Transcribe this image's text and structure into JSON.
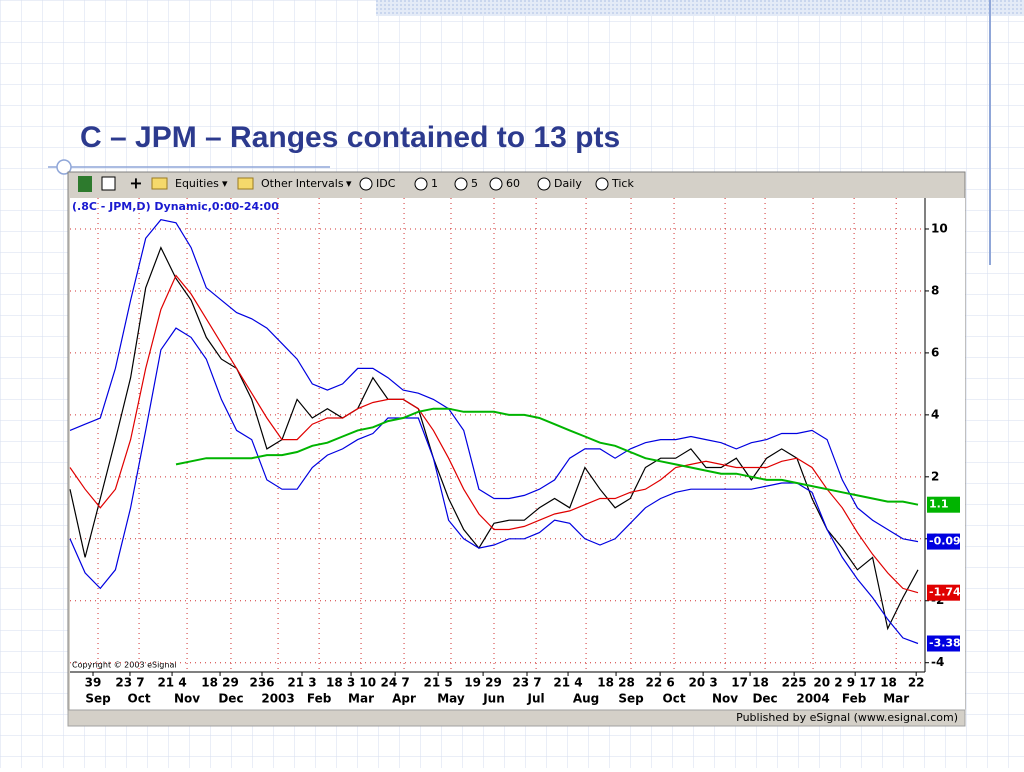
{
  "slide": {
    "title": "C – JPM – Ranges contained to 13 pts"
  },
  "toolbar": {
    "items": [
      "Equities",
      "Other Intervals",
      "IDC",
      "1",
      "5",
      "60",
      "Daily",
      "Tick"
    ]
  },
  "chart_data": {
    "type": "line",
    "title": "(.8C - JPM,D) Dynamic,0:00-24:00",
    "copyright": "Copyright © 2003 eSignal",
    "source": "Published by eSignal (www.esignal.com)",
    "categories": [
      null,
      null,
      null,
      null,
      null,
      null,
      null,
      null,
      null,
      null,
      null,
      null,
      null,
      null,
      null,
      null,
      null,
      null,
      null,
      null,
      null,
      null,
      null,
      null,
      null,
      null,
      null,
      null,
      null,
      null,
      null,
      null,
      null,
      null,
      null,
      null,
      null,
      null,
      null,
      null,
      null,
      null,
      null,
      null,
      null,
      null,
      null,
      null,
      null,
      null,
      null,
      null,
      null,
      null,
      null,
      null,
      null
    ],
    "xlim": [
      0,
      56
    ],
    "xticks": [
      {
        "value": 1.85,
        "label": "Sep"
      },
      {
        "value": 4.56,
        "label": "Oct"
      },
      {
        "value": 7.73,
        "label": "Nov"
      },
      {
        "value": 10.63,
        "label": "Dec"
      },
      {
        "value": 13.74,
        "label": "2003"
      },
      {
        "value": 16.45,
        "label": "Feb"
      },
      {
        "value": 19.22,
        "label": "Mar"
      },
      {
        "value": 22.06,
        "label": "Apr"
      },
      {
        "value": 25.16,
        "label": "May"
      },
      {
        "value": 28.0,
        "label": "Jun"
      },
      {
        "value": 30.78,
        "label": "Jul"
      },
      {
        "value": 34.08,
        "label": "Aug"
      },
      {
        "value": 37.05,
        "label": "Sep"
      },
      {
        "value": 39.89,
        "label": "Oct"
      },
      {
        "value": 43.26,
        "label": "Nov"
      },
      {
        "value": 45.9,
        "label": "Dec"
      },
      {
        "value": 49.07,
        "label": "2004"
      },
      {
        "value": 51.78,
        "label": "Feb"
      },
      {
        "value": 54.56,
        "label": "Mar"
      }
    ],
    "xticks_days": [
      {
        "value": 1.52,
        "label": "39"
      },
      {
        "value": 3.96,
        "label": "23 7"
      },
      {
        "value": 6.74,
        "label": "21 4"
      },
      {
        "value": 9.91,
        "label": "18 29"
      },
      {
        "value": 12.68,
        "label": "236"
      },
      {
        "value": 15.32,
        "label": "21 3"
      },
      {
        "value": 18.56,
        "label": "18 3 10"
      },
      {
        "value": 21.47,
        "label": "24 7"
      },
      {
        "value": 24.31,
        "label": "21 5"
      },
      {
        "value": 27.28,
        "label": "19 29"
      },
      {
        "value": 30.18,
        "label": "23 7"
      },
      {
        "value": 32.89,
        "label": "21 4"
      },
      {
        "value": 36.06,
        "label": "18 28"
      },
      {
        "value": 38.97,
        "label": "22 6"
      },
      {
        "value": 41.81,
        "label": "20 3"
      },
      {
        "value": 44.91,
        "label": "17 18"
      },
      {
        "value": 47.82,
        "label": "225"
      },
      {
        "value": 51.85,
        "label": "20 2 9 17 18"
      },
      {
        "value": 55.88,
        "label": "22"
      }
    ],
    "ylim": [
      -4.3,
      11.0
    ],
    "yticks": [
      -4,
      -2,
      0,
      2,
      4,
      6,
      8,
      10
    ],
    "grid": true,
    "series": [
      {
        "color": "#000000",
        "values": [
          1.6,
          -0.6,
          1.3,
          3.2,
          5.2,
          8.1,
          9.4,
          8.4,
          7.7,
          6.5,
          5.8,
          5.5,
          4.5,
          2.9,
          3.2,
          4.5,
          3.9,
          4.2,
          3.9,
          4.2,
          5.2,
          4.5,
          4.5,
          4.2,
          2.6,
          1.3,
          0.3,
          -0.3,
          0.5,
          0.6,
          0.6,
          1.0,
          1.3,
          1.0,
          2.3,
          1.6,
          1.0,
          1.3,
          2.3,
          2.6,
          2.6,
          2.9,
          2.3,
          2.3,
          2.6,
          1.9,
          2.6,
          2.9,
          2.6,
          1.3,
          0.3,
          -0.3,
          -1.0,
          -0.6,
          -2.9,
          -1.9,
          -1.0
        ]
      },
      {
        "color": "#e00000",
        "values": [
          2.3,
          1.6,
          1.0,
          1.6,
          3.2,
          5.5,
          7.4,
          8.5,
          7.9,
          7.1,
          6.3,
          5.5,
          4.7,
          3.9,
          3.2,
          3.2,
          3.7,
          3.9,
          3.9,
          4.2,
          4.4,
          4.5,
          4.5,
          4.2,
          3.5,
          2.6,
          1.6,
          0.8,
          0.3,
          0.3,
          0.4,
          0.6,
          0.8,
          0.9,
          1.1,
          1.3,
          1.3,
          1.5,
          1.6,
          1.9,
          2.3,
          2.4,
          2.5,
          2.4,
          2.3,
          2.3,
          2.3,
          2.5,
          2.6,
          2.3,
          1.6,
          1.0,
          0.2,
          -0.5,
          -1.1,
          -1.6,
          -1.74
        ]
      },
      {
        "color": "#0000e0",
        "values": [
          3.5,
          3.7,
          3.9,
          5.5,
          7.7,
          9.7,
          10.3,
          10.2,
          9.4,
          8.1,
          7.7,
          7.3,
          7.1,
          6.8,
          6.3,
          5.8,
          5.0,
          4.8,
          5.0,
          5.5,
          5.5,
          5.2,
          4.8,
          4.7,
          4.5,
          4.2,
          3.5,
          1.6,
          1.3,
          1.3,
          1.4,
          1.6,
          1.9,
          2.6,
          2.9,
          2.9,
          2.6,
          2.9,
          3.1,
          3.2,
          3.2,
          3.3,
          3.2,
          3.1,
          2.9,
          3.1,
          3.2,
          3.4,
          3.4,
          3.5,
          3.2,
          1.9,
          1.0,
          0.6,
          0.3,
          0.0,
          -0.09
        ]
      },
      {
        "color": "#0000e0",
        "values": [
          0.0,
          -1.1,
          -1.6,
          -1.0,
          1.0,
          3.5,
          6.1,
          6.8,
          6.5,
          5.8,
          4.5,
          3.5,
          3.2,
          1.9,
          1.6,
          1.6,
          2.3,
          2.7,
          2.9,
          3.2,
          3.4,
          3.9,
          3.9,
          3.9,
          2.6,
          0.6,
          0.0,
          -0.3,
          -0.2,
          0.0,
          0.0,
          0.2,
          0.6,
          0.5,
          0.0,
          -0.2,
          0.0,
          0.5,
          1.0,
          1.3,
          1.5,
          1.6,
          1.6,
          1.6,
          1.6,
          1.6,
          1.7,
          1.8,
          1.8,
          1.5,
          0.3,
          -0.6,
          -1.3,
          -1.9,
          -2.6,
          -3.2,
          -3.38
        ]
      },
      {
        "color": "#00b400",
        "values": [
          null,
          null,
          null,
          null,
          null,
          null,
          null,
          2.4,
          2.5,
          2.6,
          2.6,
          2.6,
          2.6,
          2.7,
          2.7,
          2.8,
          3.0,
          3.1,
          3.3,
          3.5,
          3.6,
          3.8,
          3.9,
          4.1,
          4.2,
          4.2,
          4.1,
          4.1,
          4.1,
          4.0,
          4.0,
          3.9,
          3.7,
          3.5,
          3.3,
          3.1,
          3.0,
          2.8,
          2.6,
          2.5,
          2.4,
          2.3,
          2.2,
          2.1,
          2.1,
          2.0,
          1.9,
          1.9,
          1.8,
          1.7,
          1.6,
          1.5,
          1.4,
          1.3,
          1.2,
          1.2,
          1.1
        ]
      }
    ]
  }
}
